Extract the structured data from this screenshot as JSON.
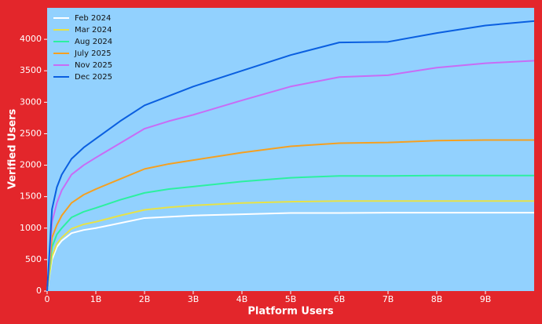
{
  "chart_data": {
    "type": "line",
    "xlabel": "Platform Users",
    "ylabel": "Verified Users",
    "x": [
      0,
      100000000,
      200000000,
      300000000,
      500000000,
      750000000,
      1000000000,
      1500000000,
      2000000000,
      2500000000,
      3000000000,
      4000000000,
      5000000000,
      6000000000,
      7000000000,
      8000000000,
      9000000000,
      10000000000
    ],
    "series": [
      {
        "name": "Feb 2024",
        "color": "#ffffff",
        "values": [
          0,
          500,
          700,
          800,
          920,
          970,
          1000,
          1080,
          1160,
          1180,
          1200,
          1220,
          1240,
          1240,
          1245,
          1245,
          1245,
          1245
        ]
      },
      {
        "name": "Mar 2024",
        "color": "#e7e247",
        "values": [
          0,
          550,
          750,
          850,
          990,
          1060,
          1100,
          1200,
          1290,
          1330,
          1360,
          1400,
          1420,
          1430,
          1430,
          1430,
          1430,
          1430
        ]
      },
      {
        "name": "Aug 2024",
        "color": "#2cf0a0",
        "values": [
          0,
          700,
          900,
          1000,
          1170,
          1260,
          1320,
          1450,
          1560,
          1620,
          1660,
          1740,
          1800,
          1830,
          1830,
          1835,
          1835,
          1835
        ]
      },
      {
        "name": "July 2025",
        "color": "#f5a020",
        "values": [
          0,
          850,
          1050,
          1200,
          1400,
          1530,
          1620,
          1780,
          1940,
          2020,
          2080,
          2200,
          2300,
          2350,
          2360,
          2390,
          2400,
          2400
        ]
      },
      {
        "name": "Nov 2025",
        "color": "#c86cf5",
        "values": [
          0,
          1100,
          1400,
          1600,
          1850,
          2000,
          2120,
          2350,
          2580,
          2700,
          2800,
          3030,
          3250,
          3400,
          3430,
          3550,
          3620,
          3660
        ]
      },
      {
        "name": "Dec 2025",
        "color": "#0a5fe0",
        "values": [
          0,
          1300,
          1650,
          1850,
          2100,
          2280,
          2420,
          2700,
          2950,
          3100,
          3250,
          3500,
          3750,
          3950,
          3960,
          4100,
          4220,
          4290
        ]
      }
    ],
    "xlim": [
      0,
      10000000000
    ],
    "xticks": [
      0,
      {
        "value": 1000000000,
        "label": "1B"
      },
      {
        "value": 2000000000,
        "label": "2B"
      },
      {
        "value": 3000000000,
        "label": "3B"
      },
      {
        "value": 4000000000,
        "label": "4B"
      },
      {
        "value": 5000000000,
        "label": "5B"
      },
      {
        "value": 6000000000,
        "label": "6B"
      },
      {
        "value": 7000000000,
        "label": "7B"
      },
      {
        "value": 8000000000,
        "label": "8B"
      },
      {
        "value": 9000000000,
        "label": "9B"
      }
    ],
    "ylim": [
      0,
      4500
    ],
    "yticks": [
      0,
      500,
      1000,
      1500,
      2000,
      2500,
      3000,
      3500,
      4000
    ],
    "grid": false,
    "legend": "upper-left",
    "background": "#92d1fe"
  }
}
